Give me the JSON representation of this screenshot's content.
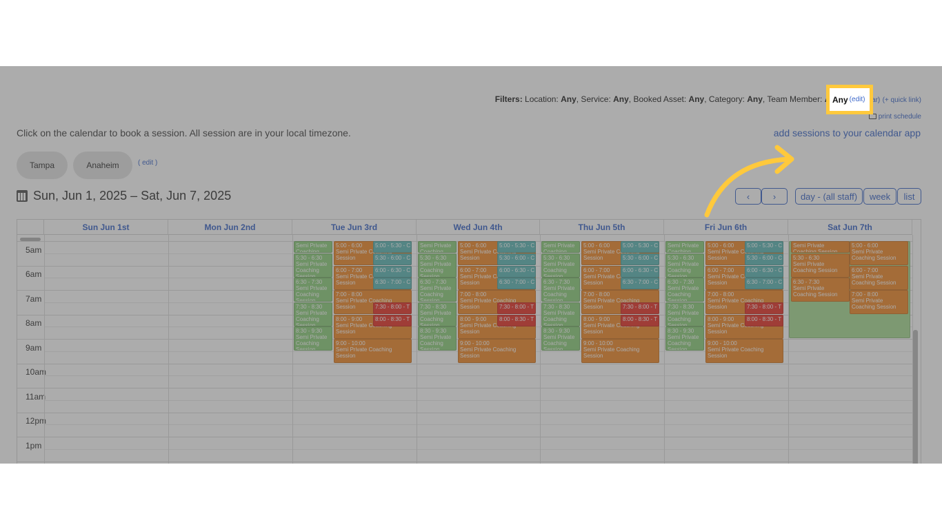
{
  "filters": {
    "label": "Filters:",
    "location_label": "Location:",
    "location_value": "Any",
    "service_label": ", Service:",
    "service_value": "Any",
    "asset_label": ", Booked Asset:",
    "asset_value": "Any",
    "category_label": ", Category:",
    "category_value": "Any",
    "member_label": ", Team Member:",
    "member_value": "Any",
    "edit_link": "(edit)",
    "clear_link": "(clear)",
    "quick_link": "(+ quick link)",
    "print_schedule": "print schedule"
  },
  "instruction": "Click on the calendar to book a session. All session are in your local timezone.",
  "add_to_calendar": "add sessions to your calendar app",
  "locations": [
    "Tampa",
    "Anaheim"
  ],
  "locations_edit": "( edit )",
  "date_range": "Sun, Jun 1, 2025 – Sat, Jun 7, 2025",
  "nav": {
    "prev": "‹",
    "next": "›",
    "day_all_staff": "day - (all staff)",
    "week": "week",
    "list": "list"
  },
  "days": [
    "Sun Jun 1st",
    "Mon Jun 2nd",
    "Tue Jun 3rd",
    "Wed Jun 4th",
    "Thu Jun 5th",
    "Fri Jun 6th",
    "Sat Jun 7th"
  ],
  "hours": [
    "5am",
    "6am",
    "7am",
    "8am",
    "9am",
    "10am",
    "11am",
    "12pm",
    "1pm"
  ],
  "events": [
    {
      "day": 2,
      "lane": 0,
      "start": "5:00",
      "end": "5:30",
      "time": "",
      "name": "Semi Private Coaching Session",
      "color": "green"
    },
    {
      "day": 2,
      "lane": 0,
      "start": "5:30",
      "end": "6:30",
      "time": "5:30 - 6:30",
      "name": "Semi Private Coaching Session",
      "color": "green"
    },
    {
      "day": 2,
      "lane": 0,
      "start": "6:30",
      "end": "7:30",
      "time": "6:30 - 7:30",
      "name": "Semi Private Coaching Session",
      "color": "green"
    },
    {
      "day": 2,
      "lane": 0,
      "start": "7:30",
      "end": "8:30",
      "time": "7:30 - 8:30",
      "name": "Semi Private Coaching Session",
      "color": "green"
    },
    {
      "day": 2,
      "lane": 0,
      "start": "8:30",
      "end": "9:30",
      "time": "8:30 - 9:30",
      "name": "Semi Private Coaching Session",
      "color": "green"
    },
    {
      "day": 2,
      "lane": 1,
      "start": "5:00",
      "end": "6:00",
      "time": "5:00 - 6:00",
      "name": "Semi Private Coaching Session",
      "color": "orange"
    },
    {
      "day": 2,
      "lane": 1,
      "start": "6:00",
      "end": "7:00",
      "time": "6:00 - 7:00",
      "name": "Semi Private Coaching Session",
      "color": "orange"
    },
    {
      "day": 2,
      "lane": 1,
      "start": "7:00",
      "end": "8:00",
      "time": "7:00 - 8:00",
      "name": "Semi Private Coaching Session",
      "color": "orange"
    },
    {
      "day": 2,
      "lane": 1,
      "start": "8:00",
      "end": "9:00",
      "time": "8:00 - 9:00",
      "name": "Semi Private Coaching Session",
      "color": "orange"
    },
    {
      "day": 2,
      "lane": 1,
      "start": "9:00",
      "end": "10:00",
      "time": "9:00 - 10:00",
      "name": "Semi Private Coaching Session",
      "color": "orange"
    },
    {
      "day": 2,
      "lane": 2,
      "start": "5:00",
      "end": "5:30",
      "time": "5:00 - 5:30 - C",
      "name": "",
      "color": "teal"
    },
    {
      "day": 2,
      "lane": 2,
      "start": "5:30",
      "end": "6:00",
      "time": "5:30 - 6:00 - C",
      "name": "",
      "color": "teal"
    },
    {
      "day": 2,
      "lane": 2,
      "start": "6:00",
      "end": "6:30",
      "time": "6:00 - 6:30 - C",
      "name": "",
      "color": "teal"
    },
    {
      "day": 2,
      "lane": 2,
      "start": "6:30",
      "end": "7:00",
      "time": "6:30 - 7:00 - C",
      "name": "",
      "color": "teal"
    },
    {
      "day": 2,
      "lane": 2,
      "start": "7:30",
      "end": "8:00",
      "time": "7:30 - 8:00 - T",
      "name": "",
      "color": "red"
    },
    {
      "day": 2,
      "lane": 2,
      "start": "8:00",
      "end": "8:30",
      "time": "8:00 - 8:30 - T",
      "name": "",
      "color": "red"
    },
    {
      "day": 3,
      "lane": 0,
      "start": "5:00",
      "end": "5:30",
      "time": "",
      "name": "Semi Private Coaching Session",
      "color": "green"
    },
    {
      "day": 3,
      "lane": 0,
      "start": "5:30",
      "end": "6:30",
      "time": "5:30 - 6:30",
      "name": "Semi Private Coaching Session",
      "color": "green"
    },
    {
      "day": 3,
      "lane": 0,
      "start": "6:30",
      "end": "7:30",
      "time": "6:30 - 7:30",
      "name": "Semi Private Coaching Session",
      "color": "green"
    },
    {
      "day": 3,
      "lane": 0,
      "start": "7:30",
      "end": "8:30",
      "time": "7:30 - 8:30",
      "name": "Semi Private Coaching Session",
      "color": "green"
    },
    {
      "day": 3,
      "lane": 0,
      "start": "8:30",
      "end": "9:30",
      "time": "8:30 - 9:30",
      "name": "Semi Private Coaching Session",
      "color": "green"
    },
    {
      "day": 3,
      "lane": 1,
      "start": "5:00",
      "end": "6:00",
      "time": "5:00 - 6:00",
      "name": "Semi Private Coaching Session",
      "color": "orange"
    },
    {
      "day": 3,
      "lane": 1,
      "start": "6:00",
      "end": "7:00",
      "time": "6:00 - 7:00",
      "name": "Semi Private Coaching Session",
      "color": "orange"
    },
    {
      "day": 3,
      "lane": 1,
      "start": "7:00",
      "end": "8:00",
      "time": "7:00 - 8:00",
      "name": "Semi Private Coaching Session",
      "color": "orange"
    },
    {
      "day": 3,
      "lane": 1,
      "start": "8:00",
      "end": "9:00",
      "time": "8:00 - 9:00",
      "name": "Semi Private Coaching Session",
      "color": "orange"
    },
    {
      "day": 3,
      "lane": 1,
      "start": "9:00",
      "end": "10:00",
      "time": "9:00 - 10:00",
      "name": "Semi Private Coaching Session",
      "color": "orange"
    },
    {
      "day": 3,
      "lane": 2,
      "start": "5:00",
      "end": "5:30",
      "time": "5:00 - 5:30 - C",
      "name": "",
      "color": "teal"
    },
    {
      "day": 3,
      "lane": 2,
      "start": "5:30",
      "end": "6:00",
      "time": "5:30 - 6:00 - C",
      "name": "",
      "color": "teal"
    },
    {
      "day": 3,
      "lane": 2,
      "start": "6:00",
      "end": "6:30",
      "time": "6:00 - 6:30 - C",
      "name": "",
      "color": "teal"
    },
    {
      "day": 3,
      "lane": 2,
      "start": "6:30",
      "end": "7:00",
      "time": "6:30 - 7:00 - C",
      "name": "",
      "color": "teal"
    },
    {
      "day": 3,
      "lane": 2,
      "start": "7:30",
      "end": "8:00",
      "time": "7:30 - 8:00 - T",
      "name": "",
      "color": "red"
    },
    {
      "day": 3,
      "lane": 2,
      "start": "8:00",
      "end": "8:30",
      "time": "8:00 - 8:30 - T",
      "name": "",
      "color": "red"
    },
    {
      "day": 4,
      "lane": 0,
      "start": "5:00",
      "end": "5:30",
      "time": "",
      "name": "Semi Private Coaching Session",
      "color": "green"
    },
    {
      "day": 4,
      "lane": 0,
      "start": "5:30",
      "end": "6:30",
      "time": "5:30 - 6:30",
      "name": "Semi Private Coaching Session",
      "color": "green"
    },
    {
      "day": 4,
      "lane": 0,
      "start": "6:30",
      "end": "7:30",
      "time": "6:30 - 7:30",
      "name": "Semi Private Coaching Session",
      "color": "green"
    },
    {
      "day": 4,
      "lane": 0,
      "start": "7:30",
      "end": "8:30",
      "time": "7:30 - 8:30",
      "name": "Semi Private Coaching Session",
      "color": "green"
    },
    {
      "day": 4,
      "lane": 0,
      "start": "8:30",
      "end": "9:30",
      "time": "8:30 - 9:30",
      "name": "Semi Private Coaching Session",
      "color": "green"
    },
    {
      "day": 4,
      "lane": 1,
      "start": "5:00",
      "end": "6:00",
      "time": "5:00 - 6:00",
      "name": "Semi Private Coaching Session",
      "color": "orange"
    },
    {
      "day": 4,
      "lane": 1,
      "start": "6:00",
      "end": "7:00",
      "time": "6:00 - 7:00",
      "name": "Semi Private Coaching Session",
      "color": "orange"
    },
    {
      "day": 4,
      "lane": 1,
      "start": "7:00",
      "end": "8:00",
      "time": "7:00 - 8:00",
      "name": "Semi Private Coaching Session",
      "color": "orange"
    },
    {
      "day": 4,
      "lane": 1,
      "start": "8:00",
      "end": "9:00",
      "time": "8:00 - 9:00",
      "name": "Semi Private Coaching Session",
      "color": "orange"
    },
    {
      "day": 4,
      "lane": 1,
      "start": "9:00",
      "end": "10:00",
      "time": "9:00 - 10:00",
      "name": "Semi Private Coaching Session",
      "color": "orange"
    },
    {
      "day": 4,
      "lane": 2,
      "start": "5:00",
      "end": "5:30",
      "time": "5:00 - 5:30 - C",
      "name": "",
      "color": "teal"
    },
    {
      "day": 4,
      "lane": 2,
      "start": "5:30",
      "end": "6:00",
      "time": "5:30 - 6:00 - C",
      "name": "",
      "color": "teal"
    },
    {
      "day": 4,
      "lane": 2,
      "start": "6:00",
      "end": "6:30",
      "time": "6:00 - 6:30 - C",
      "name": "",
      "color": "teal"
    },
    {
      "day": 4,
      "lane": 2,
      "start": "6:30",
      "end": "7:00",
      "time": "6:30 - 7:00 - C",
      "name": "",
      "color": "teal"
    },
    {
      "day": 4,
      "lane": 2,
      "start": "7:30",
      "end": "8:00",
      "time": "7:30 - 8:00 - T",
      "name": "",
      "color": "red"
    },
    {
      "day": 4,
      "lane": 2,
      "start": "8:00",
      "end": "8:30",
      "time": "8:00 - 8:30 - T",
      "name": "",
      "color": "red"
    },
    {
      "day": 5,
      "lane": 0,
      "start": "5:00",
      "end": "5:30",
      "time": "",
      "name": "Semi Private Coaching Session",
      "color": "green"
    },
    {
      "day": 5,
      "lane": 0,
      "start": "5:30",
      "end": "6:30",
      "time": "5:30 - 6:30",
      "name": "Semi Private Coaching Session",
      "color": "green"
    },
    {
      "day": 5,
      "lane": 0,
      "start": "6:30",
      "end": "7:30",
      "time": "6:30 - 7:30",
      "name": "Semi Private Coaching Session",
      "color": "green"
    },
    {
      "day": 5,
      "lane": 0,
      "start": "7:30",
      "end": "8:30",
      "time": "7:30 - 8:30",
      "name": "Semi Private Coaching Session",
      "color": "green"
    },
    {
      "day": 5,
      "lane": 0,
      "start": "8:30",
      "end": "9:30",
      "time": "8:30 - 9:30",
      "name": "Semi Private Coaching Session",
      "color": "green"
    },
    {
      "day": 5,
      "lane": 1,
      "start": "5:00",
      "end": "6:00",
      "time": "5:00 - 6:00",
      "name": "Semi Private Coaching Session",
      "color": "orange"
    },
    {
      "day": 5,
      "lane": 1,
      "start": "6:00",
      "end": "7:00",
      "time": "6:00 - 7:00",
      "name": "Semi Private Coaching Session",
      "color": "orange"
    },
    {
      "day": 5,
      "lane": 1,
      "start": "7:00",
      "end": "8:00",
      "time": "7:00 - 8:00",
      "name": "Semi Private Coaching Session",
      "color": "orange"
    },
    {
      "day": 5,
      "lane": 1,
      "start": "8:00",
      "end": "9:00",
      "time": "8:00 - 9:00",
      "name": "Semi Private Coaching Session",
      "color": "orange"
    },
    {
      "day": 5,
      "lane": 1,
      "start": "9:00",
      "end": "10:00",
      "time": "9:00 - 10:00",
      "name": "Semi Private Coaching Session",
      "color": "orange"
    },
    {
      "day": 5,
      "lane": 2,
      "start": "5:00",
      "end": "5:30",
      "time": "5:00 - 5:30 - C",
      "name": "",
      "color": "teal"
    },
    {
      "day": 5,
      "lane": 2,
      "start": "5:30",
      "end": "6:00",
      "time": "5:30 - 6:00 - C",
      "name": "",
      "color": "teal"
    },
    {
      "day": 5,
      "lane": 2,
      "start": "6:00",
      "end": "6:30",
      "time": "6:00 - 6:30 - C",
      "name": "",
      "color": "teal"
    },
    {
      "day": 5,
      "lane": 2,
      "start": "6:30",
      "end": "7:00",
      "time": "6:30 - 7:00 - C",
      "name": "",
      "color": "teal"
    },
    {
      "day": 5,
      "lane": 2,
      "start": "7:30",
      "end": "8:00",
      "time": "7:30 - 8:00 - T",
      "name": "",
      "color": "red"
    },
    {
      "day": 5,
      "lane": 2,
      "start": "8:00",
      "end": "8:30",
      "time": "8:00 - 8:30 - T",
      "name": "",
      "color": "red"
    },
    {
      "day": 6,
      "lane": 3,
      "start": "5:00",
      "end": "9:00",
      "time": "",
      "name": "",
      "color": "lightgreen"
    },
    {
      "day": 6,
      "lane": 4,
      "start": "5:00",
      "end": "5:30",
      "time": "",
      "name": "Semi Private Coaching Session",
      "color": "orange"
    },
    {
      "day": 6,
      "lane": 4,
      "start": "5:30",
      "end": "6:30",
      "time": "5:30 - 6:30",
      "name": "Semi Private Coaching Session",
      "color": "orange"
    },
    {
      "day": 6,
      "lane": 4,
      "start": "6:30",
      "end": "7:30",
      "time": "6:30 - 7:30",
      "name": "Semi Private Coaching Session",
      "color": "orange"
    },
    {
      "day": 6,
      "lane": 5,
      "start": "5:00",
      "end": "6:00",
      "time": "5:00 - 6:00",
      "name": "Semi Private Coaching Session",
      "color": "orange"
    },
    {
      "day": 6,
      "lane": 5,
      "start": "6:00",
      "end": "7:00",
      "time": "6:00 - 7:00",
      "name": "Semi Private Coaching Session",
      "color": "orange"
    },
    {
      "day": 6,
      "lane": 5,
      "start": "7:00",
      "end": "8:00",
      "time": "7:00 - 8:00",
      "name": "Semi Private Coaching Session",
      "color": "orange"
    }
  ],
  "colors": {
    "link": "#3b67c9",
    "green": "#8fcf7e",
    "orange": "#f08a2c",
    "teal": "#5fb9b6",
    "red": "#e8362a",
    "highlight": "#ffc93c"
  }
}
